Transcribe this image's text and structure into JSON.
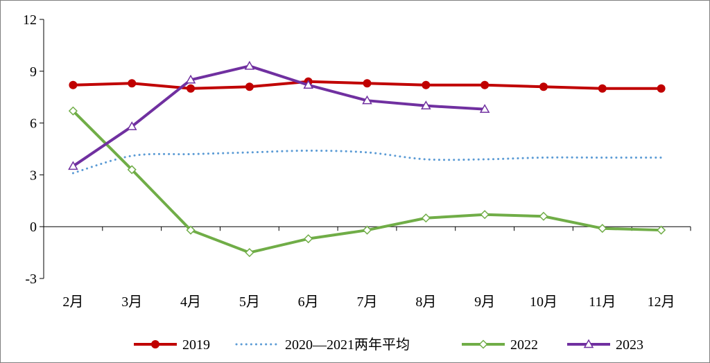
{
  "chart_data": {
    "type": "line",
    "categories": [
      "2月",
      "3月",
      "4月",
      "5月",
      "6月",
      "7月",
      "8月",
      "9月",
      "10月",
      "11月",
      "12月"
    ],
    "ylim": [
      -3,
      12
    ],
    "yticks": [
      -3,
      0,
      3,
      6,
      9,
      12
    ],
    "ytick_labels": [
      "-3",
      "0",
      "3",
      "6",
      "9",
      "12"
    ],
    "grid": false,
    "legend_position": "bottom",
    "series": [
      {
        "name": "2019",
        "color": "#c00000",
        "style": "solid",
        "marker": "circle",
        "values": [
          8.2,
          8.3,
          8.0,
          8.1,
          8.4,
          8.3,
          8.2,
          8.2,
          8.1,
          8.0,
          8.0
        ]
      },
      {
        "name": "2020—2021两年平均",
        "color": "#5b9bd5",
        "style": "dotted",
        "marker": "none",
        "values": [
          3.1,
          4.1,
          4.2,
          4.3,
          4.4,
          4.3,
          3.9,
          3.9,
          4.0,
          4.0,
          4.0
        ]
      },
      {
        "name": "2022",
        "color": "#70ad47",
        "style": "solid",
        "marker": "diamond",
        "values": [
          6.7,
          3.3,
          -0.2,
          -1.5,
          -0.7,
          -0.2,
          0.5,
          0.7,
          0.6,
          -0.1,
          -0.2
        ]
      },
      {
        "name": "2023",
        "color": "#7030a0",
        "style": "solid",
        "marker": "triangle",
        "values": [
          3.5,
          5.8,
          8.5,
          9.3,
          8.2,
          7.3,
          7.0,
          6.8,
          null,
          null,
          null
        ]
      }
    ]
  }
}
